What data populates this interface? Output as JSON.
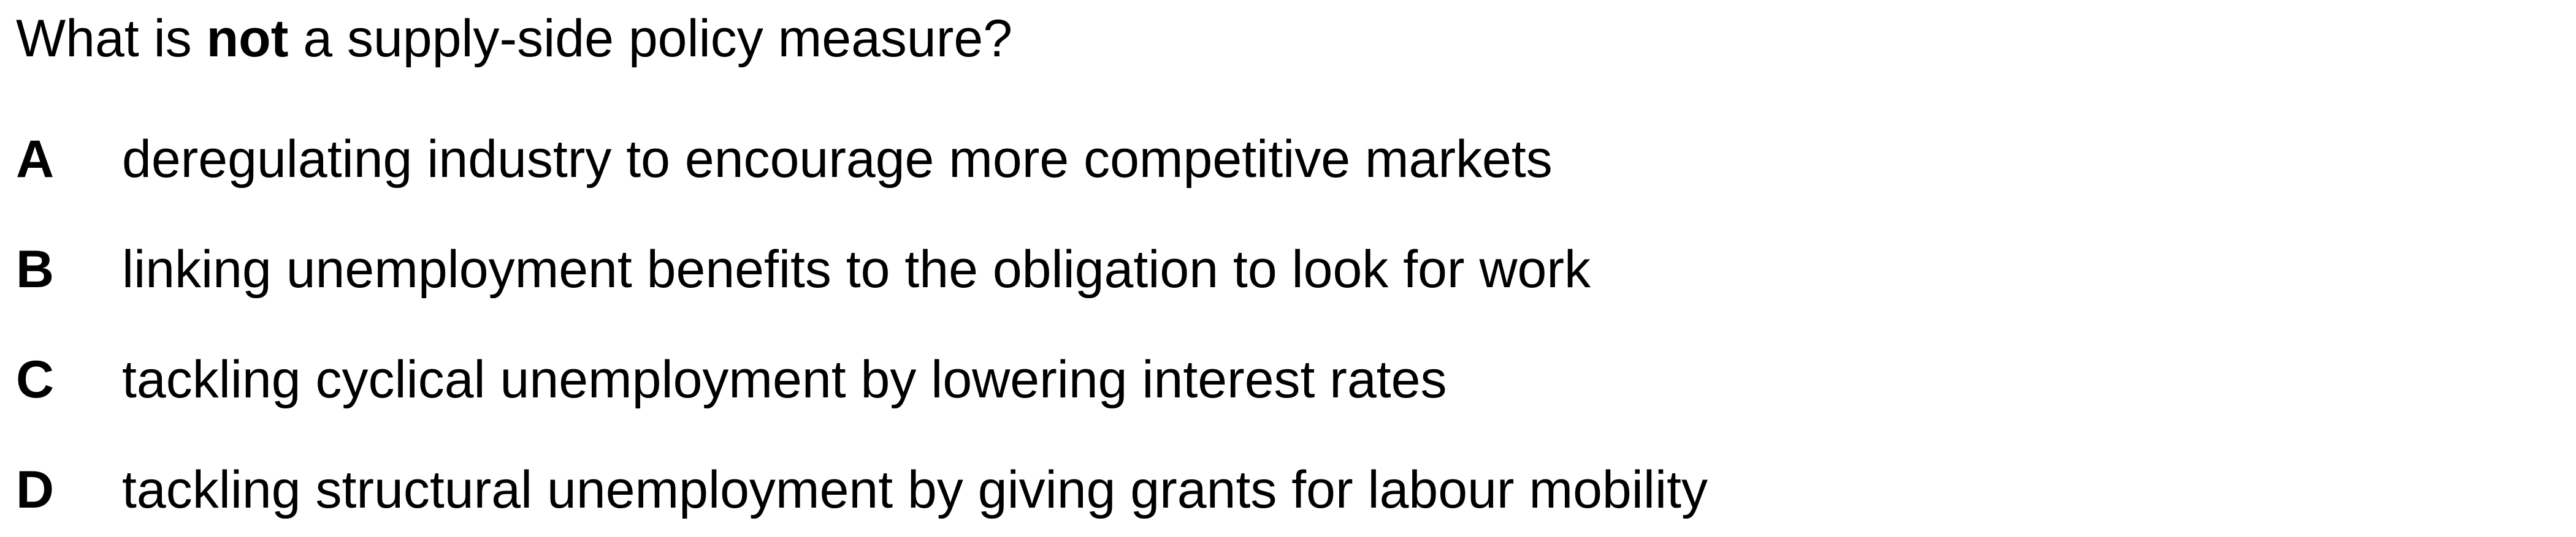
{
  "question": {
    "before": "What is ",
    "emphasis": "not",
    "after": " a supply-side policy measure?"
  },
  "options": [
    {
      "letter": "A",
      "text": "deregulating industry to encourage more competitive markets"
    },
    {
      "letter": "B",
      "text": "linking unemployment benefits to the obligation to look for work"
    },
    {
      "letter": "C",
      "text": "tackling cyclical unemployment by lowering interest rates"
    },
    {
      "letter": "D",
      "text": "tackling structural unemployment by giving grants for labour mobility"
    }
  ]
}
